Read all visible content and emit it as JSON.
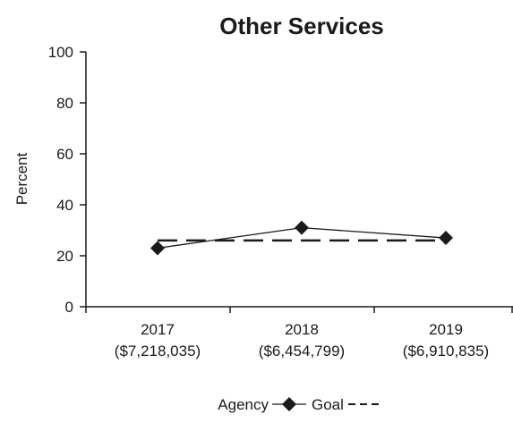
{
  "chart_data": {
    "type": "line",
    "title": "Other Services",
    "ylabel": "Percent",
    "xlabel": "",
    "ylim": [
      0,
      100
    ],
    "yticks": [
      0,
      20,
      40,
      60,
      80,
      100
    ],
    "categories": [
      "2017",
      "2018",
      "2019"
    ],
    "category_sublabels": [
      "($7,218,035)",
      "($6,454,799)",
      "($6,910,835)"
    ],
    "series": [
      {
        "name": "Agency",
        "style": "solid-diamond",
        "color": "#1a1a1a",
        "values": [
          23,
          31,
          27
        ]
      },
      {
        "name": "Goal",
        "style": "dashed",
        "color": "#1a1a1a",
        "values": [
          26,
          26,
          26
        ]
      }
    ],
    "grid": false,
    "legend_position": "bottom-center"
  }
}
